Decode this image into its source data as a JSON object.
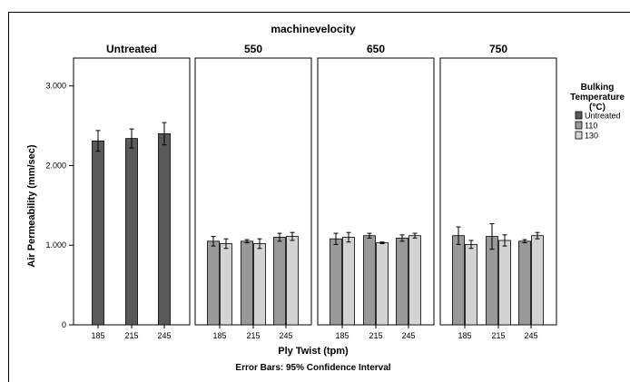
{
  "chart_data": {
    "type": "bar",
    "title": "machinevelocity",
    "xlabel": "Ply Twist (tpm)",
    "ylabel": "Air Permeability (mm/sec)",
    "footnote": "Error Bars: 95% Confidence Interval",
    "ylim": [
      0,
      3.35
    ],
    "yticks": [
      {
        "value": 0,
        "label": "0"
      },
      {
        "value": 1,
        "label": "1.000"
      },
      {
        "value": 2,
        "label": "2.000"
      },
      {
        "value": 3,
        "label": "3.000"
      }
    ],
    "categories": [
      "185",
      "215",
      "245"
    ],
    "legend": {
      "title": [
        "Bulking",
        "Temperature",
        "(°C)"
      ],
      "placement": "right",
      "entries": [
        {
          "label": "Untreated",
          "color": "#595959"
        },
        {
          "label": "110",
          "color": "#999999"
        },
        {
          "label": "130",
          "color": "#d3d3d3"
        }
      ]
    },
    "panels": [
      {
        "label": "Untreated",
        "series": [
          {
            "name": "Untreated",
            "values": [
              2.31,
              2.34,
              2.4
            ],
            "err": [
              0.13,
              0.12,
              0.14
            ]
          }
        ]
      },
      {
        "label": "550",
        "series": [
          {
            "name": "110",
            "values": [
              1.05,
              1.05,
              1.1
            ],
            "err": [
              0.06,
              0.02,
              0.05
            ]
          },
          {
            "name": "130",
            "values": [
              1.02,
              1.02,
              1.11
            ],
            "err": [
              0.06,
              0.06,
              0.05
            ]
          }
        ]
      },
      {
        "label": "650",
        "series": [
          {
            "name": "110",
            "values": [
              1.08,
              1.12,
              1.09
            ],
            "err": [
              0.07,
              0.03,
              0.04
            ]
          },
          {
            "name": "130",
            "values": [
              1.1,
              1.03,
              1.12
            ],
            "err": [
              0.06,
              0.01,
              0.03
            ]
          }
        ]
      },
      {
        "label": "750",
        "series": [
          {
            "name": "110",
            "values": [
              1.12,
              1.11,
              1.05
            ],
            "err": [
              0.11,
              0.16,
              0.02
            ]
          },
          {
            "name": "130",
            "values": [
              1.01,
              1.06,
              1.12
            ],
            "err": [
              0.05,
              0.07,
              0.04
            ]
          }
        ]
      }
    ]
  }
}
